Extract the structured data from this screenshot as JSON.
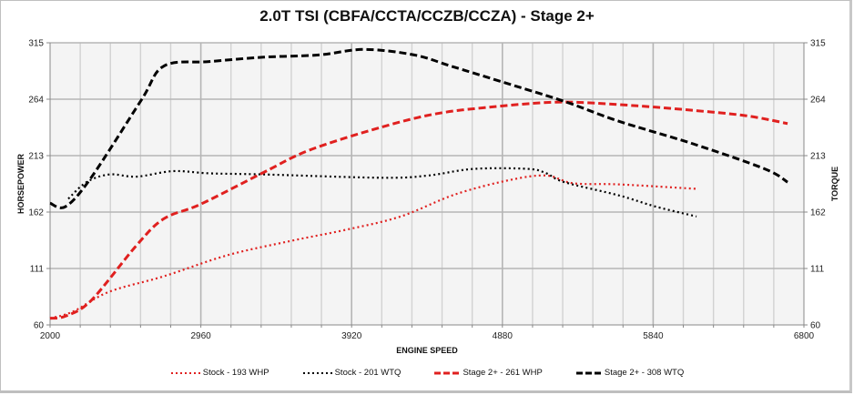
{
  "chart_data": {
    "type": "line",
    "title": "2.0T TSI (CBFA/CCTA/CCZB/CCZA) - Stage 2+",
    "xlabel": "ENGINE SPEED",
    "ylabel": "HORSEPOWER",
    "y2label": "TORQUE",
    "xlim": [
      2000,
      6800
    ],
    "ylim": [
      60,
      315
    ],
    "x_ticks": [
      "2000",
      "2960",
      "3920",
      "4880",
      "5840",
      "6800"
    ],
    "y_ticks": [
      "315",
      "264",
      "213",
      "162",
      "111",
      "60"
    ],
    "y2_ticks": [
      "315",
      "264",
      "213",
      "162",
      "111",
      "60"
    ],
    "grid": true,
    "legend_position": "bottom",
    "series": [
      {
        "name": "Stock - 193 WHP",
        "color": "#e0201f",
        "style": "dotted",
        "x": [
          2000,
          2145,
          2377,
          2725,
          3130,
          3536,
          3884,
          4232,
          4580,
          4928,
          5160,
          5333,
          5623,
          6116
        ],
        "values": [
          66,
          72,
          90,
          104,
          123,
          136,
          146,
          158,
          178,
          191,
          195,
          188,
          187,
          183
        ]
      },
      {
        "name": "Stock - 201 WTQ",
        "color": "#000000",
        "style": "dotted",
        "x": [
          2116,
          2232,
          2377,
          2551,
          2783,
          3014,
          3362,
          4116,
          4406,
          4696,
          5043,
          5160,
          5275,
          5623,
          5855,
          6116
        ],
        "values": [
          174,
          189,
          196,
          194,
          199,
          197,
          196,
          193,
          195,
          201,
          201,
          197,
          189,
          177,
          167,
          158
        ]
      },
      {
        "name": "Stage 2+ - 261 WHP",
        "color": "#e0201f",
        "style": "dashed",
        "x": [
          2000,
          2099,
          2261,
          2551,
          2725,
          2957,
          3362,
          3652,
          4116,
          4464,
          4812,
          5160,
          5391,
          5739,
          6087,
          6435,
          6696
        ],
        "values": [
          66,
          68,
          82,
          132,
          156,
          169,
          198,
          218,
          239,
          251,
          257,
          261,
          261,
          258,
          254,
          249,
          242
        ]
      },
      {
        "name": "Stage 2+ - 308 WTQ",
        "color": "#000000",
        "style": "dashed",
        "x": [
          2000,
          2099,
          2261,
          2580,
          2725,
          3014,
          3362,
          3710,
          4000,
          4319,
          4551,
          4870,
          5275,
          5623,
          6087,
          6551,
          6696
        ],
        "values": [
          170,
          167,
          193,
          263,
          294,
          298,
          302,
          304,
          309,
          304,
          294,
          280,
          262,
          244,
          224,
          201,
          189
        ]
      }
    ]
  }
}
